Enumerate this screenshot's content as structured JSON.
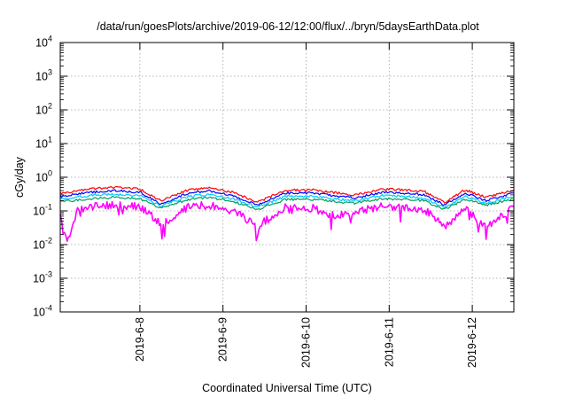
{
  "chart_data": {
    "type": "line",
    "title": "/data/run/goesPlots/archive/2019-06-12/12:00/flux/../bryn/5daysEarthData.plot",
    "xlabel": "Coordinated Universal Time (UTC)",
    "ylabel": "cGy/day",
    "yscale": "log",
    "ylim": [
      0.0001,
      10000
    ],
    "xlim": [
      "2019-06-07T01:00",
      "2019-06-12T12:00"
    ],
    "y_ticks": [
      {
        "base": "10",
        "exp": "-4",
        "value": 0.0001
      },
      {
        "base": "10",
        "exp": "-3",
        "value": 0.001
      },
      {
        "base": "10",
        "exp": "-2",
        "value": 0.01
      },
      {
        "base": "10",
        "exp": "-1",
        "value": 0.1
      },
      {
        "base": "10",
        "exp": "0",
        "value": 1
      },
      {
        "base": "10",
        "exp": "1",
        "value": 10
      },
      {
        "base": "10",
        "exp": "2",
        "value": 100
      },
      {
        "base": "10",
        "exp": "3",
        "value": 1000
      },
      {
        "base": "10",
        "exp": "4",
        "value": 10000
      }
    ],
    "x_ticks": [
      {
        "label": "2019-6-8",
        "value": "2019-06-08T00:00"
      },
      {
        "label": "2019-6-9",
        "value": "2019-06-09T00:00"
      },
      {
        "label": "2019-6-10",
        "value": "2019-06-10T00:00"
      },
      {
        "label": "2019-6-11",
        "value": "2019-06-11T00:00"
      },
      {
        "label": "2019-6-12",
        "value": "2019-06-12T00:00"
      }
    ],
    "grid": true,
    "legend": "none",
    "series": [
      {
        "color": "#ff0000",
        "x": [
          "2019-06-07T01:00",
          "2019-06-07T10:00",
          "2019-06-07T16:00",
          "2019-06-08T00:00",
          "2019-06-08T06:00",
          "2019-06-08T14:00",
          "2019-06-08T20:00",
          "2019-06-09T03:00",
          "2019-06-09T10:00",
          "2019-06-09T18:00",
          "2019-06-10T02:00",
          "2019-06-10T08:00",
          "2019-06-10T14:00",
          "2019-06-10T22:00",
          "2019-06-11T04:00",
          "2019-06-11T10:00",
          "2019-06-11T16:00",
          "2019-06-11T22:00",
          "2019-06-12T04:00",
          "2019-06-12T12:00"
        ],
        "y": [
          0.33,
          0.45,
          0.5,
          0.45,
          0.2,
          0.42,
          0.5,
          0.35,
          0.18,
          0.42,
          0.42,
          0.35,
          0.3,
          0.45,
          0.42,
          0.38,
          0.18,
          0.42,
          0.25,
          0.42
        ]
      },
      {
        "color": "#0000ff",
        "x": [
          "2019-06-07T01:00",
          "2019-06-07T10:00",
          "2019-06-07T16:00",
          "2019-06-08T00:00",
          "2019-06-08T06:00",
          "2019-06-08T14:00",
          "2019-06-08T20:00",
          "2019-06-09T03:00",
          "2019-06-09T10:00",
          "2019-06-09T18:00",
          "2019-06-10T02:00",
          "2019-06-10T08:00",
          "2019-06-10T14:00",
          "2019-06-10T22:00",
          "2019-06-11T04:00",
          "2019-06-11T10:00",
          "2019-06-11T16:00",
          "2019-06-11T22:00",
          "2019-06-12T04:00",
          "2019-06-12T12:00"
        ],
        "y": [
          0.27,
          0.36,
          0.4,
          0.36,
          0.16,
          0.34,
          0.4,
          0.28,
          0.15,
          0.34,
          0.34,
          0.28,
          0.24,
          0.36,
          0.34,
          0.3,
          0.15,
          0.34,
          0.2,
          0.34
        ]
      },
      {
        "color": "#00c8ff",
        "x": [
          "2019-06-07T01:00",
          "2019-06-07T10:00",
          "2019-06-07T16:00",
          "2019-06-08T00:00",
          "2019-06-08T06:00",
          "2019-06-08T14:00",
          "2019-06-08T20:00",
          "2019-06-09T03:00",
          "2019-06-09T10:00",
          "2019-06-09T18:00",
          "2019-06-10T02:00",
          "2019-06-10T08:00",
          "2019-06-10T14:00",
          "2019-06-10T22:00",
          "2019-06-11T04:00",
          "2019-06-11T10:00",
          "2019-06-11T16:00",
          "2019-06-11T22:00",
          "2019-06-12T04:00",
          "2019-06-12T12:00"
        ],
        "y": [
          0.22,
          0.29,
          0.31,
          0.29,
          0.14,
          0.27,
          0.31,
          0.23,
          0.13,
          0.27,
          0.27,
          0.23,
          0.2,
          0.29,
          0.27,
          0.24,
          0.13,
          0.27,
          0.17,
          0.27
        ]
      },
      {
        "color": "#00a060",
        "x": [
          "2019-06-07T01:00",
          "2019-06-07T10:00",
          "2019-06-07T16:00",
          "2019-06-08T00:00",
          "2019-06-08T06:00",
          "2019-06-08T14:00",
          "2019-06-08T20:00",
          "2019-06-09T03:00",
          "2019-06-09T10:00",
          "2019-06-09T18:00",
          "2019-06-10T02:00",
          "2019-06-10T08:00",
          "2019-06-10T14:00",
          "2019-06-10T22:00",
          "2019-06-11T04:00",
          "2019-06-11T10:00",
          "2019-06-11T16:00",
          "2019-06-11T22:00",
          "2019-06-12T04:00",
          "2019-06-12T12:00"
        ],
        "y": [
          0.19,
          0.23,
          0.25,
          0.23,
          0.12,
          0.22,
          0.25,
          0.19,
          0.11,
          0.22,
          0.22,
          0.19,
          0.17,
          0.23,
          0.22,
          0.2,
          0.11,
          0.22,
          0.15,
          0.22
        ]
      },
      {
        "color": "#ff00ff",
        "x": [
          "2019-06-07T01:00",
          "2019-06-07T03:00",
          "2019-06-07T06:00",
          "2019-06-07T10:00",
          "2019-06-07T16:00",
          "2019-06-08T00:00",
          "2019-06-08T06:00",
          "2019-06-08T14:00",
          "2019-06-08T20:00",
          "2019-06-09T03:00",
          "2019-06-09T10:00",
          "2019-06-09T18:00",
          "2019-06-10T02:00",
          "2019-06-10T08:00",
          "2019-06-10T14:00",
          "2019-06-10T22:00",
          "2019-06-11T04:00",
          "2019-06-11T10:00",
          "2019-06-11T16:00",
          "2019-06-11T22:00",
          "2019-06-12T04:00",
          "2019-06-12T12:00"
        ],
        "y": [
          0.06,
          0.013,
          0.1,
          0.14,
          0.15,
          0.14,
          0.04,
          0.13,
          0.15,
          0.1,
          0.035,
          0.13,
          0.12,
          0.07,
          0.09,
          0.14,
          0.13,
          0.11,
          0.035,
          0.12,
          0.03,
          0.13
        ]
      }
    ]
  }
}
